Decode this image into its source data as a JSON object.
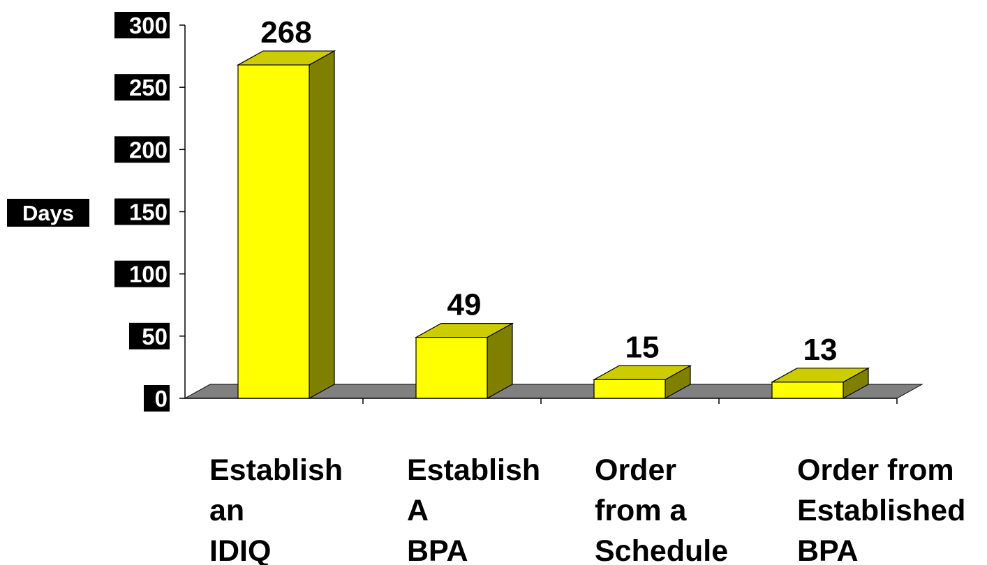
{
  "chart_data": {
    "type": "bar",
    "style": "3d-column",
    "categories": [
      [
        "Establish",
        "an",
        "IDIQ"
      ],
      [
        "Establish",
        "A",
        "BPA"
      ],
      [
        "Order",
        "from a",
        "Schedule"
      ],
      [
        "Order from",
        "Established",
        "BPA"
      ]
    ],
    "values": [
      268,
      49,
      15,
      13
    ],
    "data_labels": [
      "268",
      "49",
      "15",
      "13"
    ],
    "ylabel": "Days",
    "ylim": [
      0,
      300
    ],
    "yticks": [
      "0",
      "50",
      "100",
      "150",
      "200",
      "250",
      "300"
    ],
    "grid": false,
    "legend": false
  },
  "colors": {
    "bar_front": "#ffff00",
    "bar_top": "#cccc00",
    "bar_side": "#808000",
    "floor": "#808080",
    "axis": "#000000",
    "tick_label_bg": "#000000",
    "tick_label_text": "#ffffff",
    "text": "#000000"
  }
}
